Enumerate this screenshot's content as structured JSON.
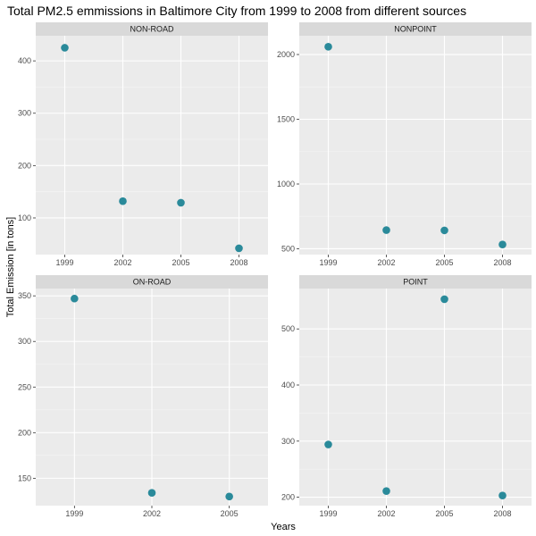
{
  "chart_data": {
    "type": "scatter",
    "title": "Total PM2.5 emmissions in Baltimore City from 1999 to 2008 from different sources",
    "xlabel": "Years",
    "ylabel": "Total Emission [in tons]",
    "grid": true,
    "facet_layout": "2x2",
    "point_color": "#2a8a9a",
    "panel_background": "#ebebeb",
    "strip_background": "#d9d9d9",
    "panels": [
      {
        "name": "NON-ROAD",
        "x_categories": [
          "1999",
          "2002",
          "2005",
          "2008"
        ],
        "values": [
          425,
          132,
          129,
          42
        ],
        "y_ticks": [
          100,
          200,
          300,
          400
        ],
        "ylim": [
          30,
          448
        ]
      },
      {
        "name": "NONPOINT",
        "x_categories": [
          "1999",
          "2002",
          "2005",
          "2008"
        ],
        "values": [
          2060,
          644,
          642,
          533
        ],
        "y_ticks": [
          500,
          1000,
          1500,
          2000
        ],
        "ylim": [
          455,
          2145
        ]
      },
      {
        "name": "ON-ROAD",
        "x_categories": [
          "1999",
          "2002",
          "2005"
        ],
        "values": [
          347,
          134,
          130
        ],
        "y_ticks": [
          150,
          200,
          250,
          300,
          350
        ],
        "ylim": [
          120,
          358
        ]
      },
      {
        "name": "POINT",
        "x_categories": [
          "1999",
          "2002",
          "2005",
          "2008"
        ],
        "values": [
          294,
          211,
          553,
          203
        ],
        "y_ticks": [
          200,
          300,
          400,
          500
        ],
        "ylim": [
          185,
          572
        ]
      }
    ]
  }
}
